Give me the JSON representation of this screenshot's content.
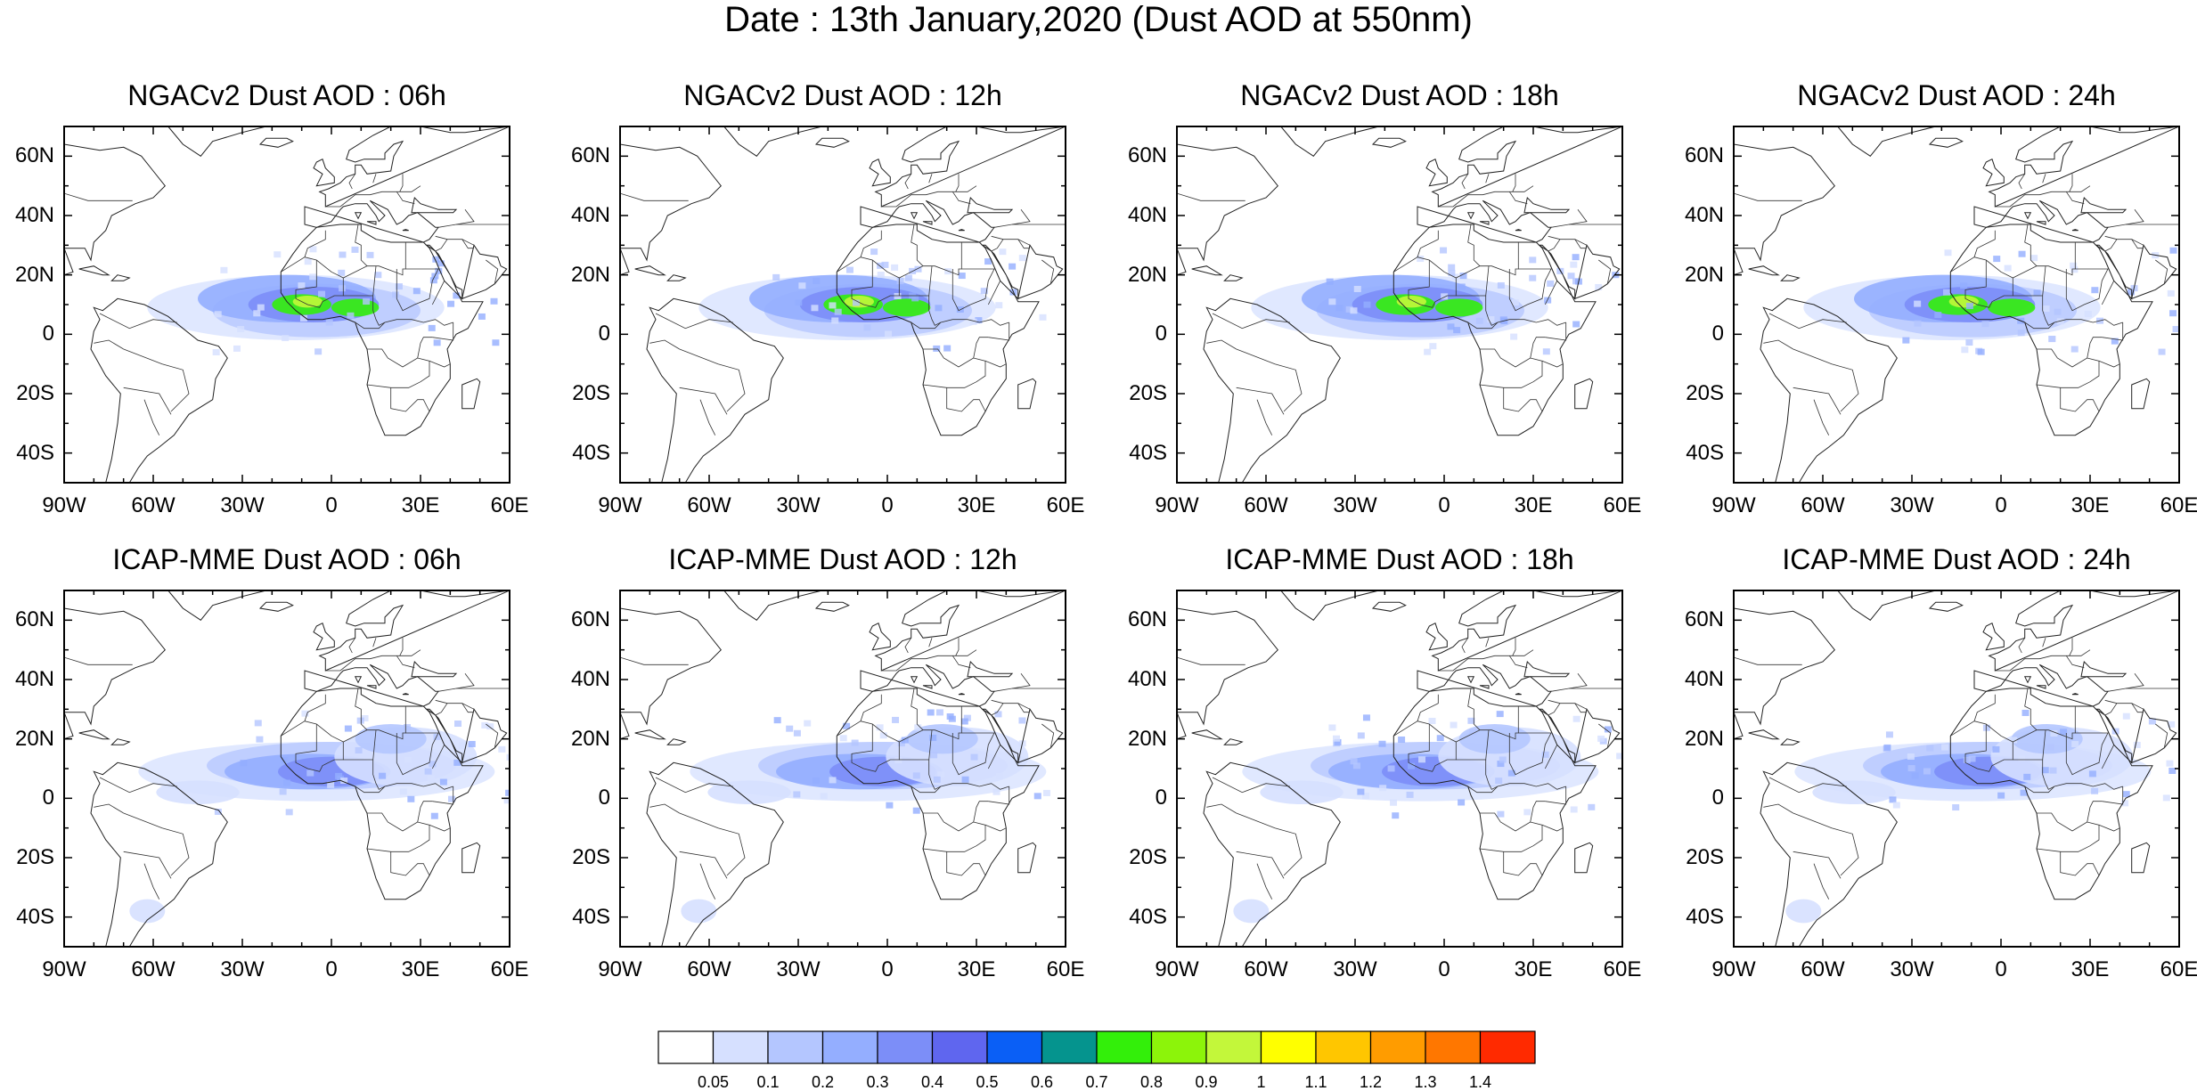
{
  "title": "Date : 13th January,2020 (Dust AOD at 550nm)",
  "panels": [
    {
      "title": "NGACv2 Dust AOD : 06h",
      "model": "ngac",
      "hour": 6
    },
    {
      "title": "NGACv2 Dust AOD : 12h",
      "model": "ngac",
      "hour": 12
    },
    {
      "title": "NGACv2 Dust AOD : 18h",
      "model": "ngac",
      "hour": 18
    },
    {
      "title": "NGACv2 Dust AOD : 24h",
      "model": "ngac",
      "hour": 24
    },
    {
      "title": "ICAP-MME Dust AOD : 06h",
      "model": "icap",
      "hour": 6
    },
    {
      "title": "ICAP-MME Dust AOD : 12h",
      "model": "icap",
      "hour": 12
    },
    {
      "title": "ICAP-MME Dust AOD : 18h",
      "model": "icap",
      "hour": 18
    },
    {
      "title": "ICAP-MME Dust AOD : 24h",
      "model": "icap",
      "hour": 24
    }
  ],
  "lat_labels": [
    "60N",
    "40N",
    "20N",
    "0",
    "20S",
    "40S"
  ],
  "lon_labels": [
    "90W",
    "60W",
    "30W",
    "0",
    "30E",
    "60E"
  ],
  "colorbar": {
    "levels": [
      "0.05",
      "0.1",
      "0.2",
      "0.3",
      "0.4",
      "0.5",
      "0.6",
      "0.7",
      "0.8",
      "0.9",
      "1",
      "1.1",
      "1.2",
      "1.3",
      "1.4"
    ],
    "colors": [
      "#ffffff",
      "#d6e0ff",
      "#b4c6ff",
      "#94aeff",
      "#7c8ef8",
      "#5f66ef",
      "#0a5ff6",
      "#05948e",
      "#33ef0a",
      "#8cf40a",
      "#c3f73a",
      "#ffff00",
      "#ffc600",
      "#ff9c00",
      "#ff7700",
      "#ff2a00"
    ]
  }
}
